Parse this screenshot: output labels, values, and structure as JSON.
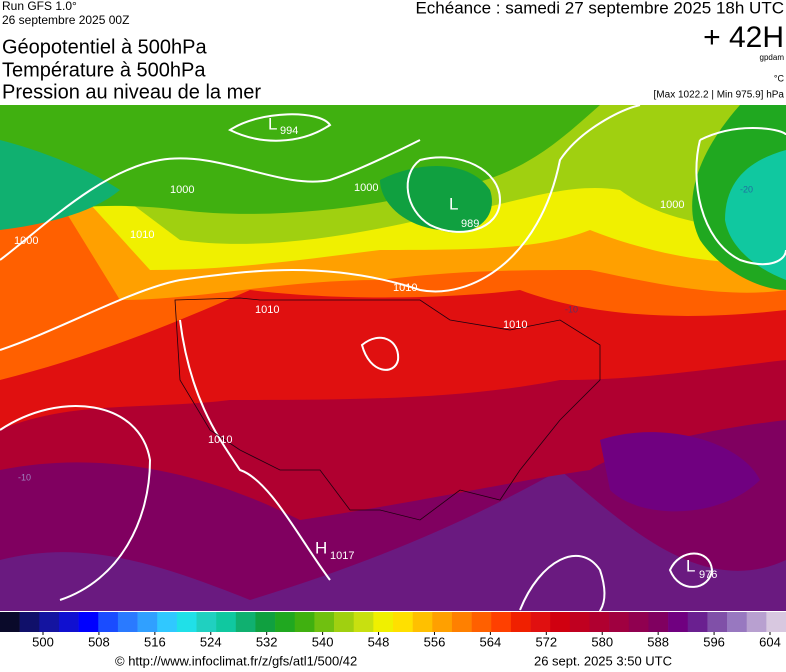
{
  "header": {
    "run": "Run GFS 1.0°",
    "date": "26 septembre 2025 00Z",
    "titles": [
      "Géopotentiel à 500hPa",
      "Température à 500hPa",
      "Pression au niveau de la mer"
    ],
    "echeance": "Echéance : samedi 27 septembre 2025 18h UTC",
    "lead": "+ 42H",
    "unit_gpdam": "gpdam",
    "unit_c": "°C",
    "minmax": "[Max 1022.2 | Min 975.9] hPa"
  },
  "map": {
    "lows": [
      {
        "symbol": "L",
        "value": "994"
      },
      {
        "symbol": "L",
        "value": "989"
      },
      {
        "symbol": "H",
        "value": "1017"
      },
      {
        "symbol": "L",
        "value": "976"
      }
    ],
    "isobars": [
      "1000",
      "1000",
      "1000",
      "1000",
      "1010",
      "1010",
      "1010",
      "1010",
      "1010"
    ],
    "isotherms": [
      "-10",
      "-10",
      "-20"
    ]
  },
  "colorbar": {
    "ticks": [
      500,
      508,
      516,
      524,
      532,
      540,
      548,
      556,
      564,
      572,
      580,
      588,
      596,
      604
    ],
    "colors": [
      "#0a0a2a",
      "#10106a",
      "#1414a0",
      "#1010d0",
      "#0000ff",
      "#1a4cff",
      "#2a7aff",
      "#30a0ff",
      "#30c8ff",
      "#20e0e8",
      "#20d0c0",
      "#10c8a0",
      "#10b070",
      "#10a040",
      "#20a820",
      "#40b010",
      "#70c010",
      "#a0d010",
      "#c8e010",
      "#f0f000",
      "#ffe000",
      "#ffc000",
      "#ffa000",
      "#ff8000",
      "#ff6000",
      "#ff4000",
      "#f02000",
      "#e01010",
      "#d00010",
      "#c00020",
      "#b00030",
      "#a00040",
      "#900050",
      "#800060",
      "#700080",
      "#6a2090",
      "#8050a8",
      "#9878c0",
      "#b8a0d0",
      "#d8c8e0"
    ]
  },
  "footer": {
    "url": "© http://www.infoclimat.fr/z/gfs/atl1/500/42",
    "time": "26 sept. 2025  3:50 UTC"
  }
}
